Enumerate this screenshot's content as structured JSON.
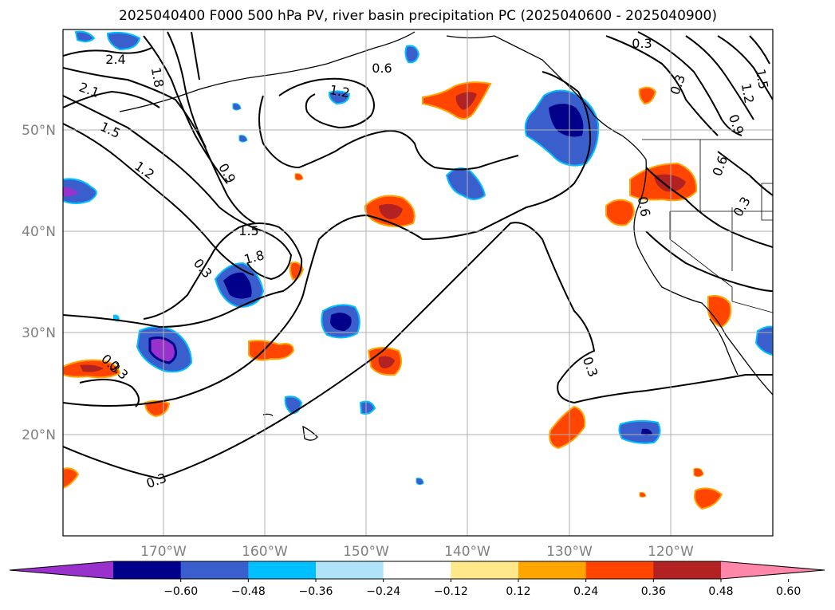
{
  "title": "2025040400 F000 500 hPa PV, river basin precipitation PC (2025040600 - 2025040900)",
  "map": {
    "lat_labels": [
      "50°N",
      "40°N",
      "30°N",
      "20°N"
    ],
    "lon_labels": [
      "170°W",
      "160°W",
      "150°W",
      "140°W",
      "130°W",
      "120°W"
    ],
    "extent": {
      "lon_min": -180,
      "lon_max": -110,
      "lat_min": 10,
      "lat_max": 60
    },
    "gridlines": true,
    "contour_labels": [
      "2.4",
      "2.1",
      "1.5",
      "1.2",
      "1.8",
      "0.9",
      "1.2",
      "0.6",
      "1.5",
      "1.8",
      "0.3",
      "0.3",
      "0.3",
      "0.3",
      "0.3",
      "1.5",
      "1.2",
      "0.9",
      "0.6",
      "0.3",
      "0.6",
      "0.3",
      "0.3"
    ]
  },
  "colorbar": {
    "ticks": [
      "−0.60",
      "−0.48",
      "−0.36",
      "−0.24",
      "−0.12",
      "0.12",
      "0.24",
      "0.36",
      "0.48",
      "0.60"
    ],
    "colors": [
      "#9932cc",
      "#00008b",
      "#3a5fcd",
      "#00bfff",
      "#afe3fa",
      "#ffffff",
      "#ffe88a",
      "#ffa500",
      "#ff4500",
      "#b22222",
      "#ff88aa"
    ]
  }
}
